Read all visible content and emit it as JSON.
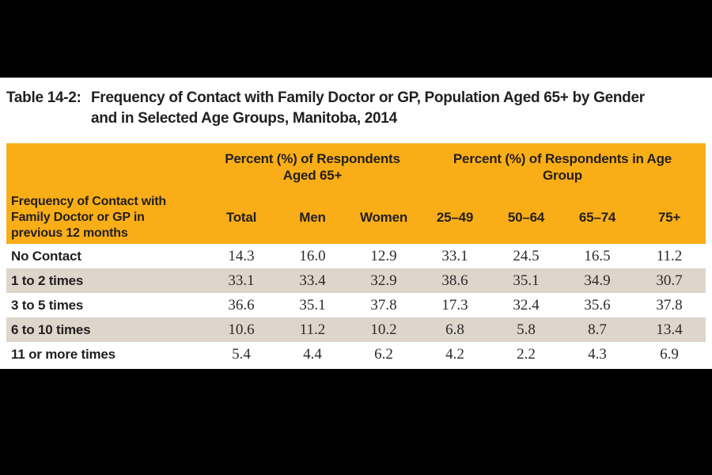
{
  "page": {
    "letterbox_color": "#000000",
    "content_background": "#ffffff"
  },
  "title": {
    "prefix": "Table 14-2:",
    "line1": "Frequency of Contact with Family Doctor or GP, Population Aged 65+ by Gender",
    "line2": "and in Selected Age Groups, Manitoba, 2014"
  },
  "table": {
    "colors": {
      "header_bg": "#F9AE17",
      "row_alt_bg": "#DED5CB",
      "row_bg": "#FFFFFF",
      "text": "#231F20"
    },
    "group_headers": [
      {
        "line1": "Percent (%) of Respondents",
        "line2": "Aged 65+"
      },
      {
        "line1": "Percent (%) of Respondents in Age",
        "line2": "Group"
      }
    ],
    "row_header": {
      "line1": "Frequency of Contact with",
      "line2": "Family Doctor or GP in",
      "line3": "previous 12 months"
    },
    "columns": [
      "Total",
      "Men",
      "Women",
      "25–49",
      "50–64",
      "65–74",
      "75+"
    ],
    "rows": [
      {
        "label": "No Contact",
        "values": [
          "14.3",
          "16.0",
          "12.9",
          "33.1",
          "24.5",
          "16.5",
          "11.2"
        ]
      },
      {
        "label": "1 to 2 times",
        "values": [
          "33.1",
          "33.4",
          "32.9",
          "38.6",
          "35.1",
          "34.9",
          "30.7"
        ]
      },
      {
        "label": "3 to 5 times",
        "values": [
          "36.6",
          "35.1",
          "37.8",
          "17.3",
          "32.4",
          "35.6",
          "37.8"
        ]
      },
      {
        "label": "6 to 10 times",
        "values": [
          "10.6",
          "11.2",
          "10.2",
          "6.8",
          "5.8",
          "8.7",
          "13.4"
        ]
      },
      {
        "label": "11 or more times",
        "values": [
          "5.4",
          "4.4",
          "6.2",
          "4.2",
          "2.2",
          "4.3",
          "6.9"
        ]
      }
    ]
  }
}
